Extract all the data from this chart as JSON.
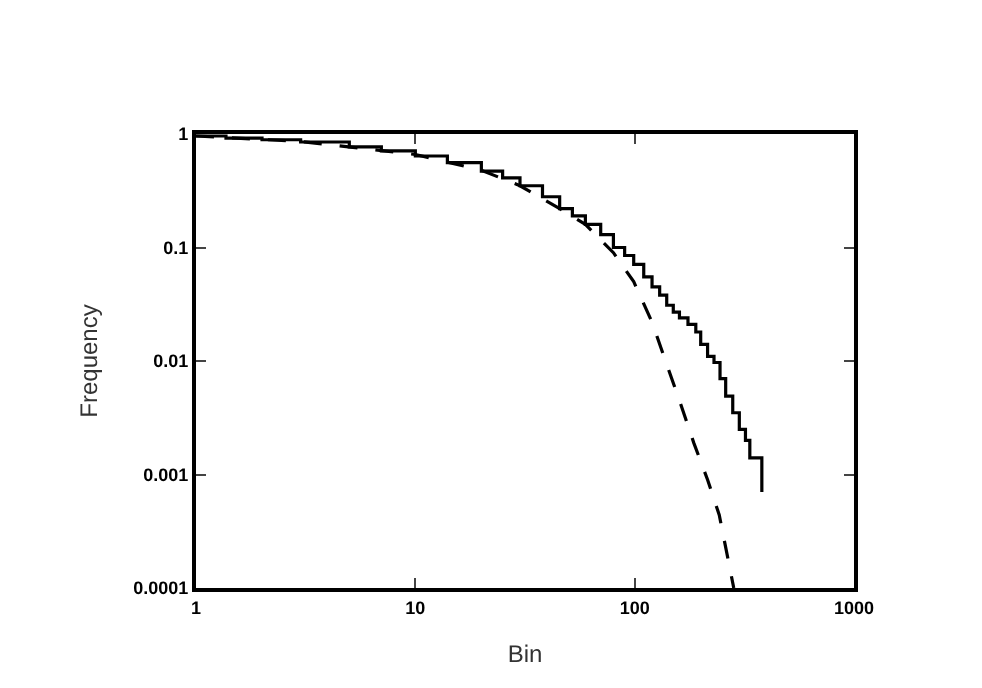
{
  "chart_data": {
    "type": "line",
    "xlabel": "Bin",
    "ylabel": "Frequency",
    "log": "xy",
    "xlim": [
      1,
      1000
    ],
    "ylim": [
      0.0001,
      1
    ],
    "xticks": [
      1,
      10,
      100,
      1000
    ],
    "yticks": [
      0.0001,
      0.001,
      0.01,
      0.1,
      1
    ],
    "series": [
      {
        "type": "step",
        "color": "#000000",
        "line_style": "solid",
        "x": [
          1,
          1.37,
          2,
          3,
          5,
          7,
          10,
          14,
          20,
          25,
          30,
          38,
          45.5,
          52,
          59.6,
          70,
          80,
          90,
          99,
          110,
          120,
          130,
          140,
          150,
          160,
          175,
          190,
          200,
          215,
          230,
          245,
          260,
          280,
          300,
          320,
          335,
          372,
          380
        ],
        "values": [
          0.96,
          0.92,
          0.89,
          0.85,
          0.77,
          0.71,
          0.64,
          0.56,
          0.47,
          0.41,
          0.35,
          0.28,
          0.22,
          0.19,
          0.16,
          0.13,
          0.1,
          0.085,
          0.071,
          0.055,
          0.045,
          0.038,
          0.031,
          0.027,
          0.024,
          0.021,
          0.018,
          0.014,
          0.011,
          0.0097,
          0.007,
          0.0049,
          0.0035,
          0.0025,
          0.002,
          0.0014,
          0.0014,
          0.0007
        ]
      },
      {
        "color": "#000000",
        "line_style": "dashed",
        "x": [
          1,
          1.37,
          3,
          10,
          20,
          30,
          45.5,
          59.6,
          80,
          99,
          120,
          139,
          160,
          186,
          215,
          243,
          283
        ],
        "values": [
          0.96,
          0.93,
          0.86,
          0.66,
          0.48,
          0.35,
          0.22,
          0.16,
          0.09,
          0.05,
          0.022,
          0.0097,
          0.0045,
          0.0019,
          0.0009,
          0.00044,
          0.0001
        ]
      }
    ]
  }
}
